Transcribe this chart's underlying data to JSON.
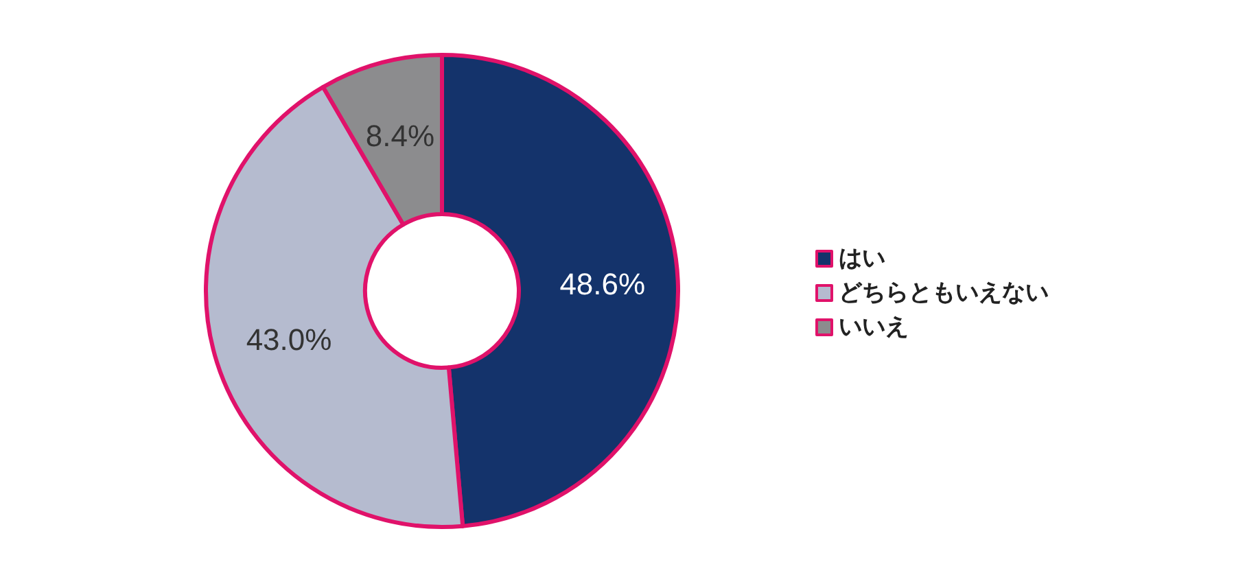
{
  "chart_data": {
    "type": "donut",
    "categories": [
      "はい",
      "どちらともいえない",
      "いいえ"
    ],
    "values": [
      48.6,
      43.0,
      8.4
    ],
    "colors": [
      "#14336b",
      "#b5bbcf",
      "#8c8c8e"
    ],
    "value_labels": [
      "48.6%",
      "43.0%",
      "8.4%"
    ],
    "legend": "right"
  }
}
